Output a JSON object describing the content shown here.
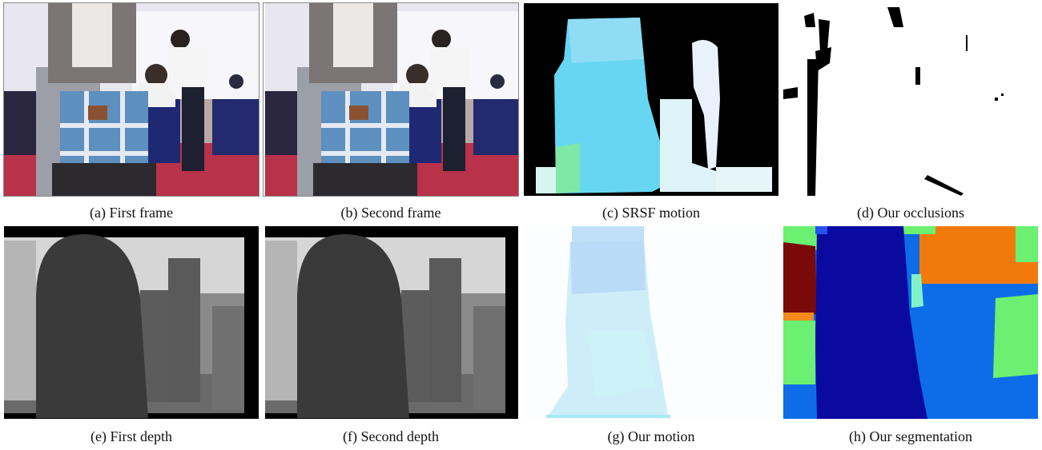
{
  "figure": {
    "panels": [
      {
        "id": "a",
        "caption": "(a) First frame"
      },
      {
        "id": "b",
        "caption": "(b) Second frame"
      },
      {
        "id": "c",
        "caption": "(c) SRSF motion"
      },
      {
        "id": "d",
        "caption": "(d)  Our occlusions"
      },
      {
        "id": "e",
        "caption": "(e) First depth"
      },
      {
        "id": "f",
        "caption": "(f) Second depth"
      },
      {
        "id": "g",
        "caption": "(g) Our motion"
      },
      {
        "id": "h",
        "caption": "(h) Our segmentation"
      }
    ]
  }
}
